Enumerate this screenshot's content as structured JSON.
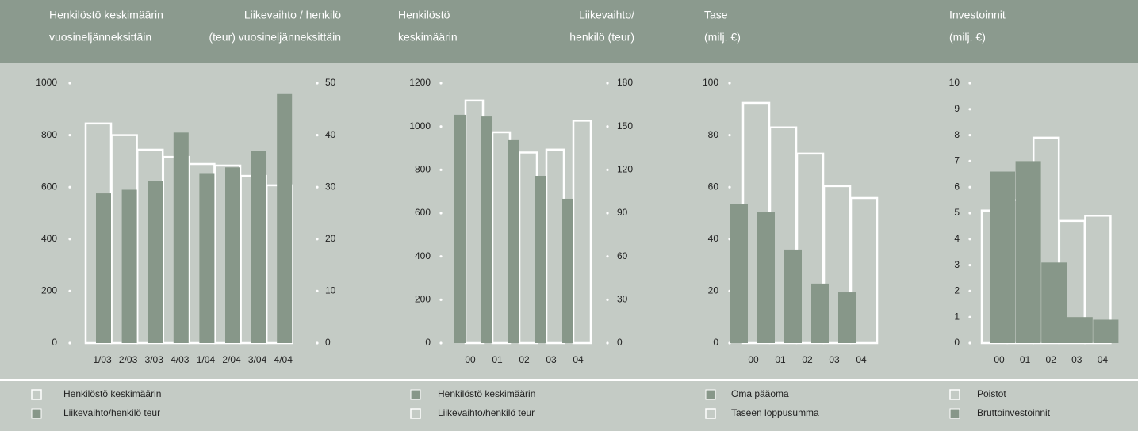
{
  "chart_data": [
    {
      "type": "bar",
      "ylabel": [
        "Henkilöstö keskimäärin",
        "vuosineljänneksittäin"
      ],
      "y2label": [
        "Liikevaihto / henkilö",
        "(teur) vuosineljänneksittäin"
      ],
      "categories": [
        "1/03",
        "2/03",
        "3/03",
        "4/03",
        "1/04",
        "2/04",
        "3/04",
        "4/04"
      ],
      "ylim": [
        0,
        1000
      ],
      "yticks": [
        0,
        200,
        400,
        600,
        800,
        1000
      ],
      "y2lim": [
        0,
        50
      ],
      "y2ticks": [
        0,
        10,
        20,
        30,
        40,
        50
      ],
      "series": [
        {
          "name": "Henkilöstö keskimäärin",
          "color": "#ffffff",
          "values": [
            845,
            800,
            744,
            716,
            689,
            683,
            643,
            607
          ]
        },
        {
          "name": "Liikevaihto/henkilö teur",
          "color": "#879789",
          "axis": "y2",
          "values": [
            28.8,
            29.5,
            31.1,
            40.5,
            32.7,
            33.8,
            37,
            47.9
          ]
        }
      ]
    },
    {
      "type": "bar",
      "ylabel": [
        "Henkilöstö",
        "keskimäärin"
      ],
      "y2label": [
        "Liikevaihto/",
        "henkilö (teur)"
      ],
      "categories": [
        "00",
        "01",
        "02",
        "03",
        "04"
      ],
      "ylim": [
        0,
        1200
      ],
      "yticks": [
        0,
        200,
        400,
        600,
        800,
        1000,
        1200
      ],
      "y2lim": [
        0,
        180
      ],
      "y2ticks": [
        0,
        30,
        60,
        90,
        120,
        150,
        180
      ],
      "series": [
        {
          "name": "Henkilöstö keskimäärin",
          "color": "#879789",
          "values": [
            1054,
            1046,
            937,
            772,
            666
          ]
        },
        {
          "name": "Liikevaihto/henkilö teur",
          "color": "#ffffff",
          "axis": "y2",
          "values": [
            168,
            146,
            132,
            134,
            154
          ]
        }
      ]
    },
    {
      "type": "bar",
      "ylabel": [
        "Tase",
        "(milj. €)"
      ],
      "categories": [
        "00",
        "01",
        "02",
        "03",
        "04"
      ],
      "ylim": [
        0,
        100
      ],
      "yticks": [
        0,
        20,
        40,
        60,
        80,
        100
      ],
      "series": [
        {
          "name": "Oma pääoma",
          "color": "#879789",
          "values": [
            53.4,
            50.3,
            36,
            22.9,
            19.5
          ]
        },
        {
          "name": "Taseen loppusumma",
          "color": "#ffffff",
          "values": [
            92.4,
            83,
            72.9,
            60.4,
            55.8
          ]
        }
      ]
    },
    {
      "type": "bar",
      "ylabel": [
        "Investoinnit",
        "(milj. €)"
      ],
      "categories": [
        "00",
        "01",
        "02",
        "03",
        "04"
      ],
      "ylim": [
        0,
        10
      ],
      "yticks": [
        0,
        1,
        2,
        3,
        4,
        5,
        6,
        7,
        8,
        9,
        10
      ],
      "series": [
        {
          "name": "Poistot",
          "color": "#ffffff",
          "values": [
            5.1,
            5.5,
            7.9,
            4.7,
            4.9
          ]
        },
        {
          "name": "Bruttoinvestoinnit",
          "color": "#879789",
          "values": [
            6.6,
            7.0,
            3.1,
            1.0,
            0.9
          ]
        }
      ]
    }
  ]
}
